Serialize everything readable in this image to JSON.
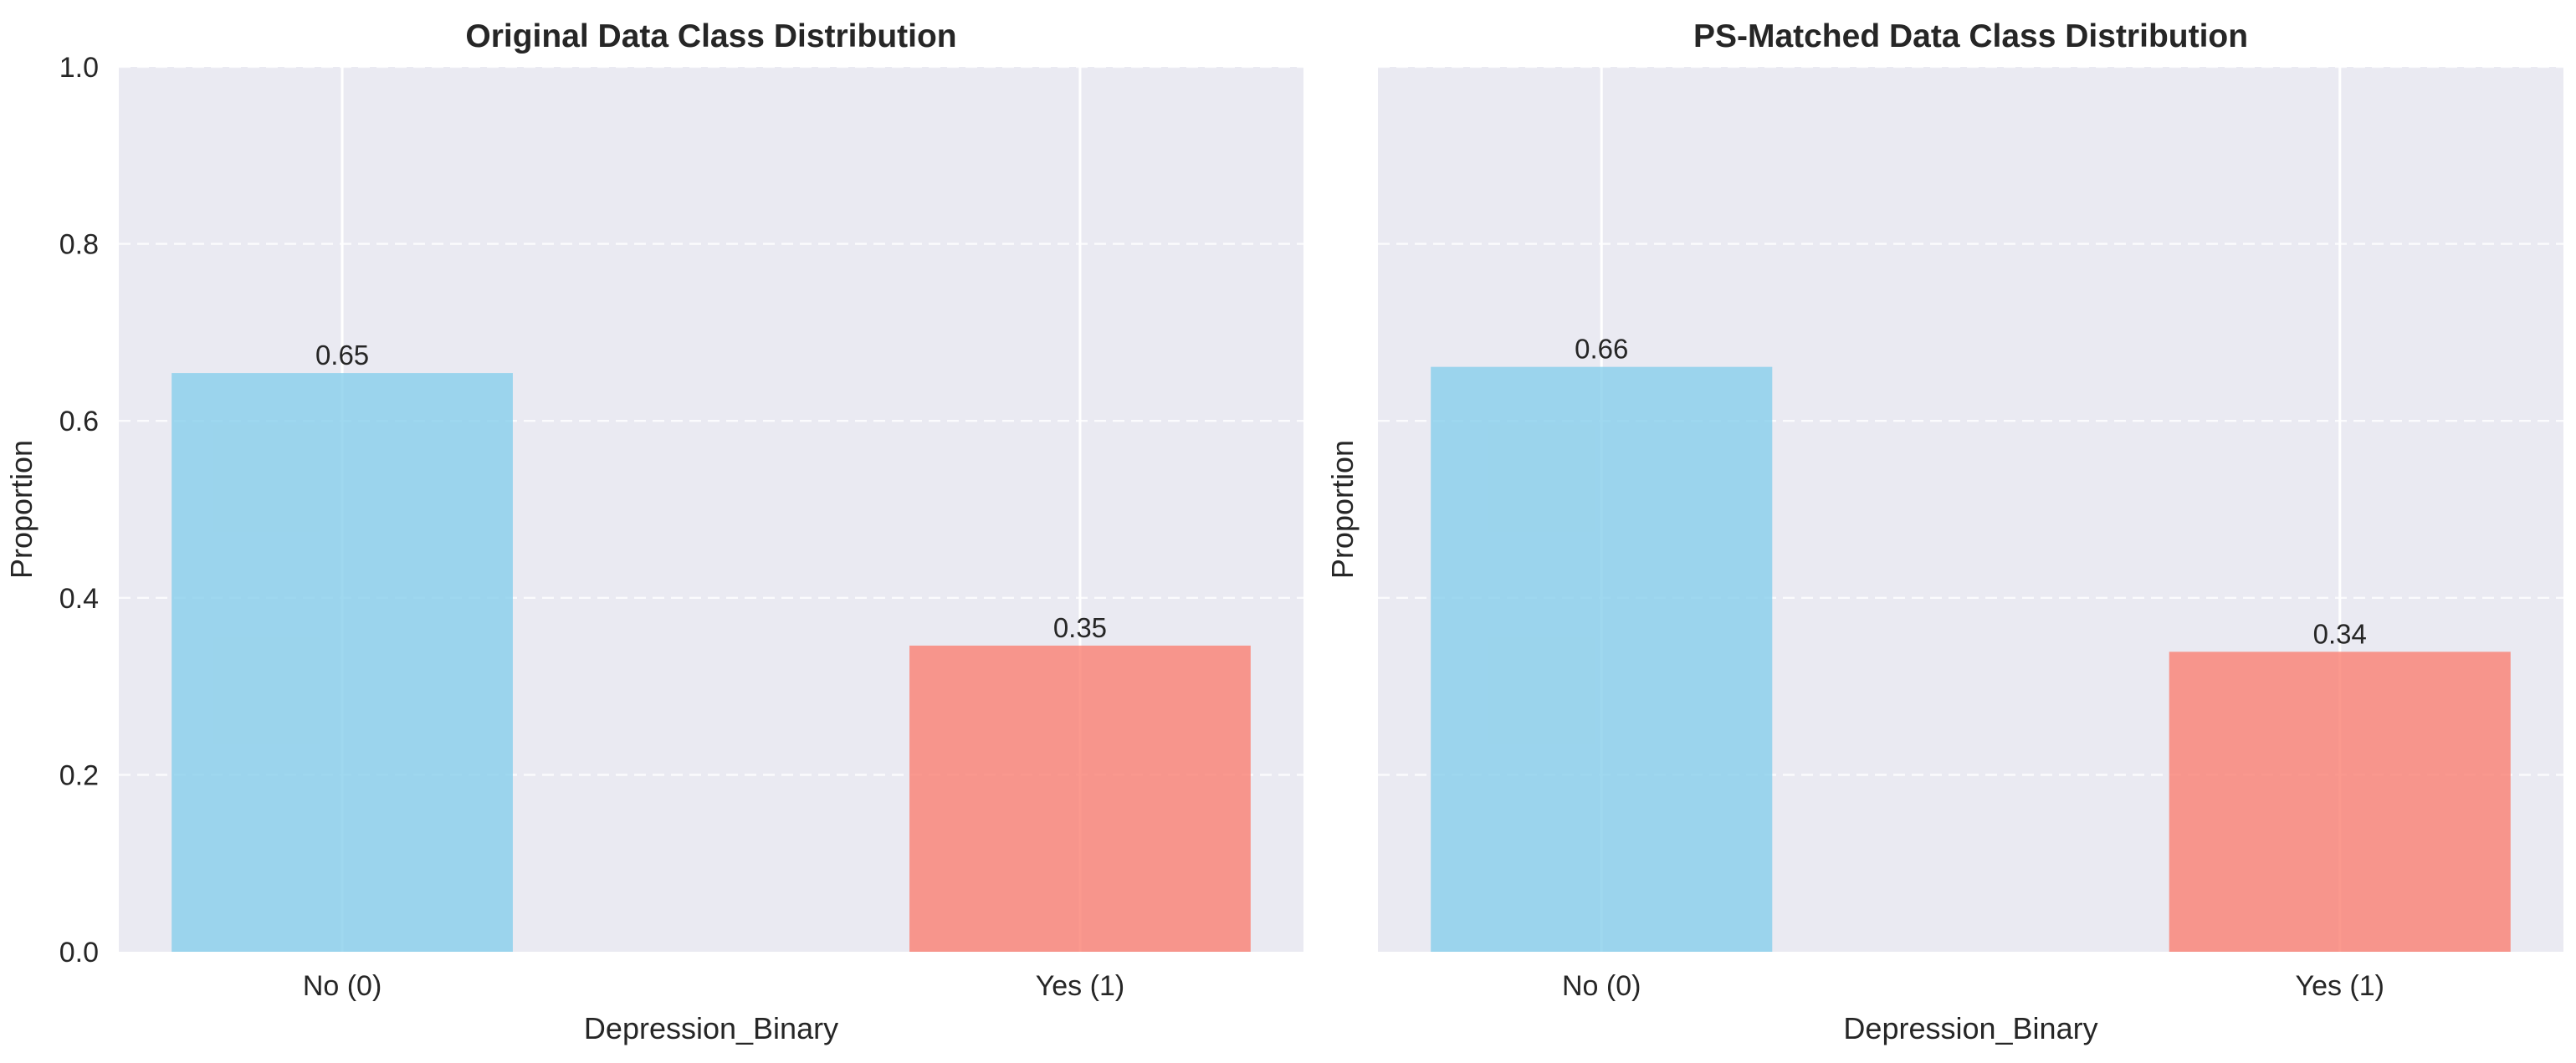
{
  "colors": {
    "background": "#eaeaf2",
    "no": "#87ceeb",
    "yes": "#fa8072",
    "text": "#262626",
    "grid": "#ffffff"
  },
  "chart_data": [
    {
      "type": "bar",
      "title": "Original Data Class Distribution",
      "xlabel": "Depression_Binary",
      "ylabel": "Proportion",
      "categories": [
        "No (0)",
        "Yes (1)"
      ],
      "values": [
        0.654,
        0.346
      ],
      "value_labels": [
        "0.65",
        "0.35"
      ],
      "bar_colors": [
        "#87ceeb",
        "#fa8072"
      ],
      "ylim": [
        0,
        1.0
      ],
      "yticks": [
        "0.0",
        "0.2",
        "0.4",
        "0.6",
        "0.8",
        "1.0"
      ],
      "grid": true
    },
    {
      "type": "bar",
      "title": "PS-Matched Data Class Distribution",
      "xlabel": "Depression_Binary",
      "ylabel": "Proportion",
      "categories": [
        "No (0)",
        "Yes (1)"
      ],
      "values": [
        0.661,
        0.339
      ],
      "value_labels": [
        "0.66",
        "0.34"
      ],
      "bar_colors": [
        "#87ceeb",
        "#fa8072"
      ],
      "ylim": [
        0,
        1.0
      ],
      "yticks": [],
      "grid": true
    }
  ]
}
